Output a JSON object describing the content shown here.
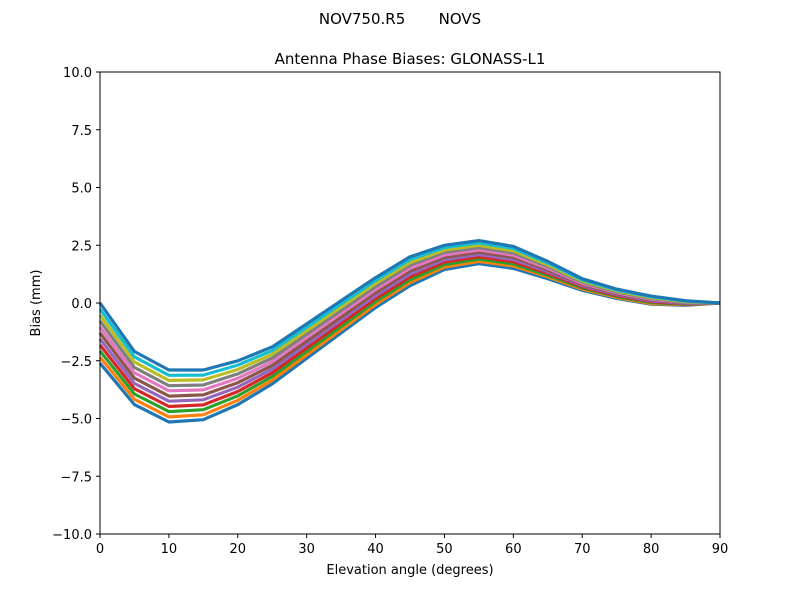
{
  "chart_data": {
    "type": "line",
    "suptitle": "NOV750.R5       NOVS",
    "title": "Antenna Phase Biases: GLONASS-L1",
    "xlabel": "Elevation angle (degrees)",
    "ylabel": "Bias (mm)",
    "xlim": [
      0,
      90
    ],
    "ylim": [
      -10,
      10
    ],
    "xticks": [
      "0",
      "10",
      "20",
      "30",
      "40",
      "50",
      "60",
      "70",
      "80",
      "90"
    ],
    "yticks": [
      "10.0",
      "7.5",
      "5.0",
      "2.5",
      "0.0",
      "−2.5",
      "−5.0",
      "−7.5",
      "−10.0"
    ],
    "grid": false,
    "colors": [
      "#1f77b4",
      "#ff7f0e",
      "#2ca02c",
      "#d62728",
      "#9467bd",
      "#8c564b",
      "#e377c2",
      "#7f7f7f",
      "#bcbd22",
      "#17becf"
    ],
    "x": [
      0,
      5,
      10,
      15,
      20,
      25,
      30,
      35,
      40,
      45,
      50,
      55,
      60,
      65,
      70,
      75,
      80,
      85,
      90
    ],
    "series": [
      {
        "values": [
          -2.6,
          -4.4,
          -5.15,
          -5.05,
          -4.4,
          -3.5,
          -2.4,
          -1.3,
          -0.2,
          0.75,
          1.45,
          1.7,
          1.5,
          1.05,
          0.55,
          0.2,
          -0.05,
          -0.1,
          0
        ]
      },
      {
        "values": [
          -2.34,
          -4.17,
          -4.93,
          -4.84,
          -4.21,
          -3.34,
          -2.25,
          -1.16,
          -0.07,
          0.88,
          1.56,
          1.8,
          1.6,
          1.13,
          0.6,
          0.24,
          -0.02,
          -0.08,
          0
        ]
      },
      {
        "values": [
          -2.08,
          -3.94,
          -4.7,
          -4.62,
          -4.02,
          -3.18,
          -2.1,
          -1.02,
          0.06,
          1.0,
          1.66,
          1.9,
          1.69,
          1.2,
          0.65,
          0.28,
          0.02,
          -0.06,
          0
        ]
      },
      {
        "values": [
          -1.82,
          -3.71,
          -4.48,
          -4.41,
          -3.83,
          -3.02,
          -1.95,
          -0.88,
          0.19,
          1.13,
          1.77,
          2.0,
          1.79,
          1.28,
          0.7,
          0.32,
          0.06,
          -0.04,
          0
        ]
      },
      {
        "values": [
          -1.56,
          -3.48,
          -4.25,
          -4.19,
          -3.64,
          -2.86,
          -1.8,
          -0.74,
          0.32,
          1.25,
          1.87,
          2.1,
          1.88,
          1.35,
          0.75,
          0.36,
          0.09,
          -0.02,
          0
        ]
      },
      {
        "values": [
          -1.3,
          -3.25,
          -4.03,
          -3.98,
          -3.45,
          -2.7,
          -1.65,
          -0.6,
          0.45,
          1.38,
          1.98,
          2.2,
          1.98,
          1.43,
          0.8,
          0.4,
          0.13,
          0,
          0
        ]
      },
      {
        "values": [
          -1.04,
          -3.02,
          -3.8,
          -3.76,
          -3.26,
          -2.54,
          -1.5,
          -0.46,
          0.58,
          1.5,
          2.08,
          2.3,
          2.07,
          1.5,
          0.85,
          0.44,
          0.16,
          0.02,
          0
        ]
      },
      {
        "values": [
          -0.78,
          -2.79,
          -3.58,
          -3.55,
          -3.07,
          -2.38,
          -1.35,
          -0.32,
          0.71,
          1.63,
          2.19,
          2.4,
          2.17,
          1.58,
          0.9,
          0.48,
          0.2,
          0.04,
          0
        ]
      },
      {
        "values": [
          -0.52,
          -2.56,
          -3.35,
          -3.33,
          -2.88,
          -2.22,
          -1.2,
          -0.18,
          0.84,
          1.75,
          2.29,
          2.5,
          2.26,
          1.65,
          0.95,
          0.52,
          0.23,
          0.06,
          0
        ]
      },
      {
        "values": [
          -0.26,
          -2.33,
          -3.13,
          -3.12,
          -2.69,
          -2.06,
          -1.05,
          -0.04,
          0.97,
          1.88,
          2.4,
          2.6,
          2.36,
          1.73,
          1.0,
          0.56,
          0.27,
          0.08,
          0
        ]
      },
      {
        "values": [
          0,
          -2.1,
          -2.9,
          -2.9,
          -2.5,
          -1.9,
          -0.9,
          0.1,
          1.1,
          2.0,
          2.5,
          2.7,
          2.45,
          1.8,
          1.05,
          0.6,
          0.3,
          0.1,
          0
        ]
      }
    ]
  }
}
